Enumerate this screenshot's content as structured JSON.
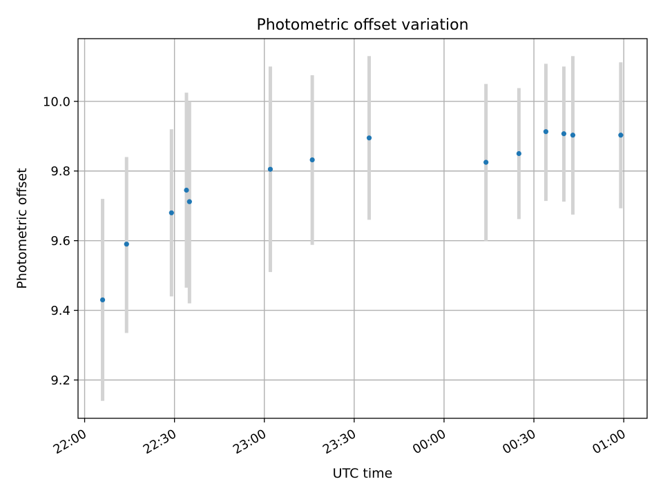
{
  "chart_data": {
    "type": "scatter",
    "title": "Photometric offset variation",
    "xlabel": "UTC time",
    "ylabel": "Photometric offset",
    "x_axis": {
      "kind": "time",
      "range": [
        "22:00",
        "01:00"
      ],
      "ticks": [
        "22:00",
        "22:30",
        "23:00",
        "23:30",
        "00:00",
        "00:30",
        "01:00"
      ]
    },
    "ylim": [
      9.09,
      10.18
    ],
    "y_ticks": [
      "9.2",
      "9.4",
      "9.6",
      "9.8",
      "10.0"
    ],
    "grid": true,
    "legend": "none",
    "point_color": "#1f77b4",
    "errorbar_color": "#d3d3d3",
    "points": [
      {
        "x": "22:06",
        "y": 9.43,
        "lower": 9.14,
        "upper": 9.72
      },
      {
        "x": "22:14",
        "y": 9.59,
        "lower": 9.335,
        "upper": 9.84
      },
      {
        "x": "22:29",
        "y": 9.68,
        "lower": 9.44,
        "upper": 9.92
      },
      {
        "x": "22:34",
        "y": 9.745,
        "lower": 9.465,
        "upper": 10.025
      },
      {
        "x": "22:35",
        "y": 9.712,
        "lower": 9.42,
        "upper": 10.0
      },
      {
        "x": "23:02",
        "y": 9.805,
        "lower": 9.51,
        "upper": 10.1
      },
      {
        "x": "23:16",
        "y": 9.832,
        "lower": 9.588,
        "upper": 10.075
      },
      {
        "x": "23:35",
        "y": 9.895,
        "lower": 9.66,
        "upper": 10.13
      },
      {
        "x": "00:14",
        "y": 9.825,
        "lower": 9.598,
        "upper": 10.05
      },
      {
        "x": "00:25",
        "y": 9.85,
        "lower": 9.662,
        "upper": 10.038
      },
      {
        "x": "00:34",
        "y": 9.913,
        "lower": 9.714,
        "upper": 10.108
      },
      {
        "x": "00:40",
        "y": 9.907,
        "lower": 9.712,
        "upper": 10.1
      },
      {
        "x": "00:43",
        "y": 9.903,
        "lower": 9.675,
        "upper": 10.13
      },
      {
        "x": "00:59",
        "y": 9.903,
        "lower": 9.693,
        "upper": 10.112
      }
    ]
  }
}
